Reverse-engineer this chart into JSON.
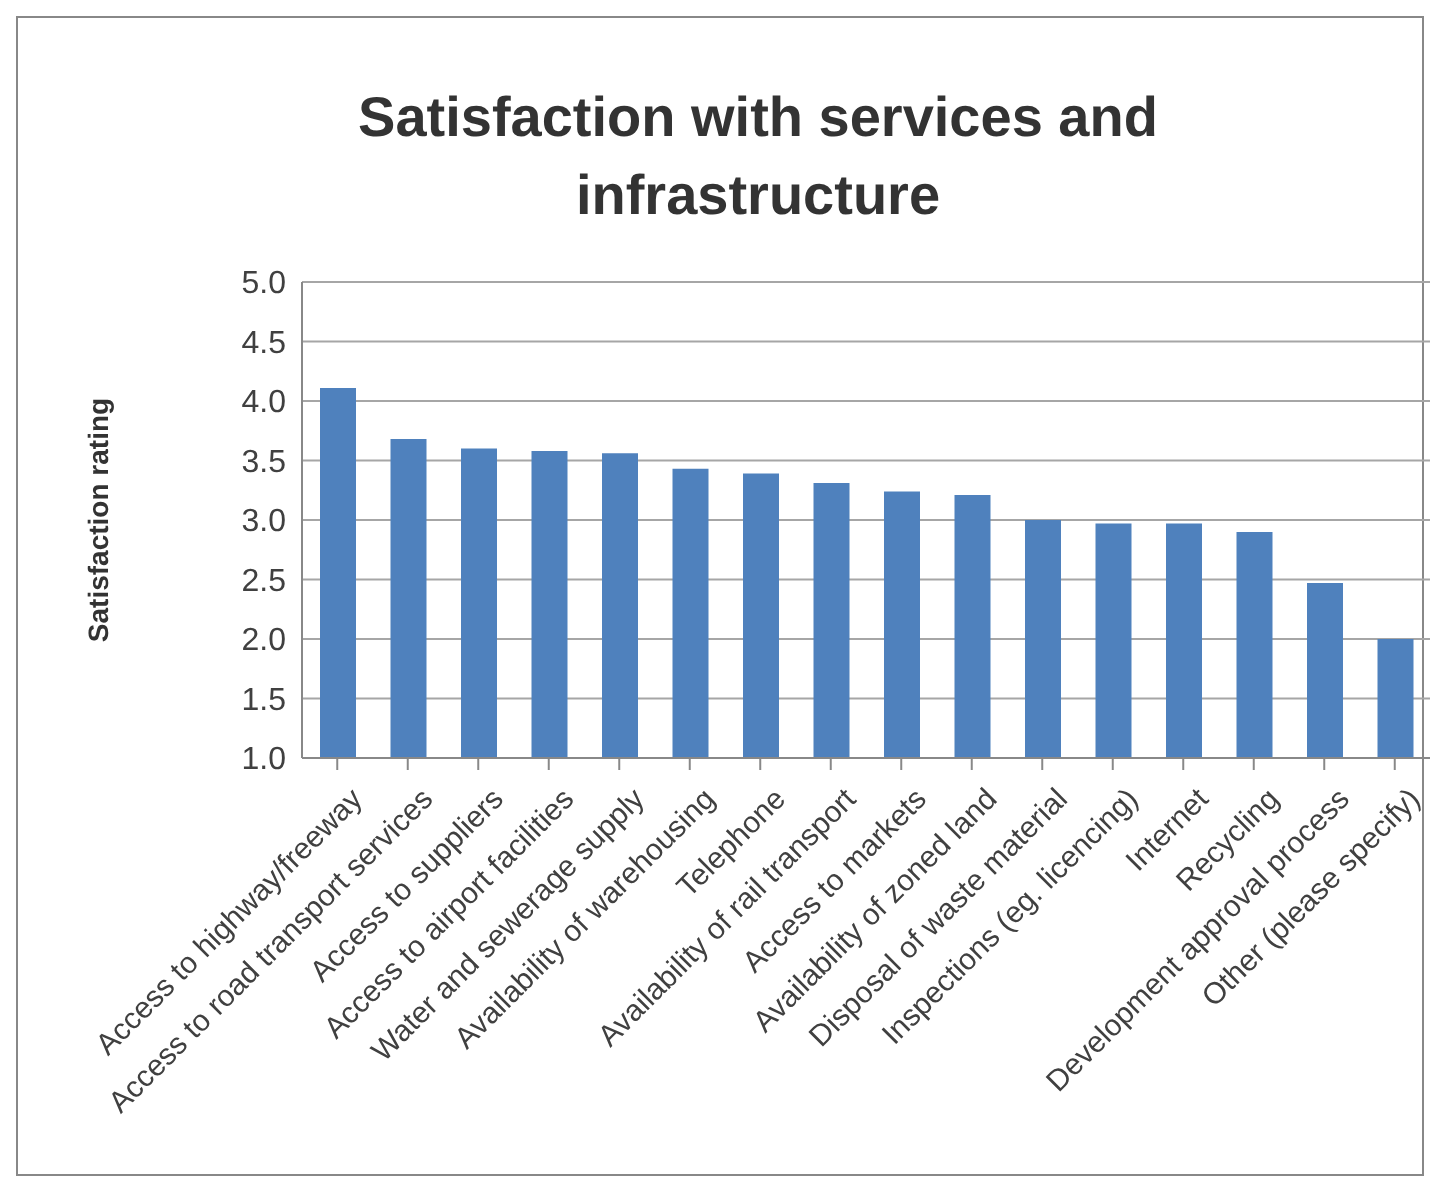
{
  "chart_data": {
    "type": "bar",
    "title": "Satisfaction with services and infrastructure",
    "ylabel": "Satisfaction rating",
    "categories": [
      "Access to highway/freeway",
      "Access to road transport services",
      "Access to suppliers",
      "Access to airport facilities",
      "Water and sewerage supply",
      "Availability of warehousing",
      "Telephone",
      "Availability of rail transport",
      "Access to markets",
      "Availability of zoned land",
      "Disposal of waste material",
      "Inspections (eg. licencing)",
      "Internet",
      "Recycling",
      "Development approval process",
      "Other (please specify)"
    ],
    "values": [
      4.11,
      3.68,
      3.6,
      3.58,
      3.56,
      3.43,
      3.39,
      3.31,
      3.24,
      3.21,
      3.0,
      2.97,
      2.97,
      2.9,
      2.47,
      2.0
    ],
    "color": "#4f81bd",
    "ylim": [
      1,
      5
    ],
    "yticks": [
      {
        "value": 1,
        "label": "1.0"
      },
      {
        "value": 1.5,
        "label": "1.5"
      },
      {
        "value": 2,
        "label": "2.0"
      },
      {
        "value": 2.5,
        "label": "2.5"
      },
      {
        "value": 3,
        "label": "3.0"
      },
      {
        "value": 3.5,
        "label": "3.5"
      },
      {
        "value": 4,
        "label": "4.0"
      },
      {
        "value": 4.5,
        "label": "4.5"
      },
      {
        "value": 5,
        "label": "5.0"
      }
    ],
    "grid": "y"
  }
}
